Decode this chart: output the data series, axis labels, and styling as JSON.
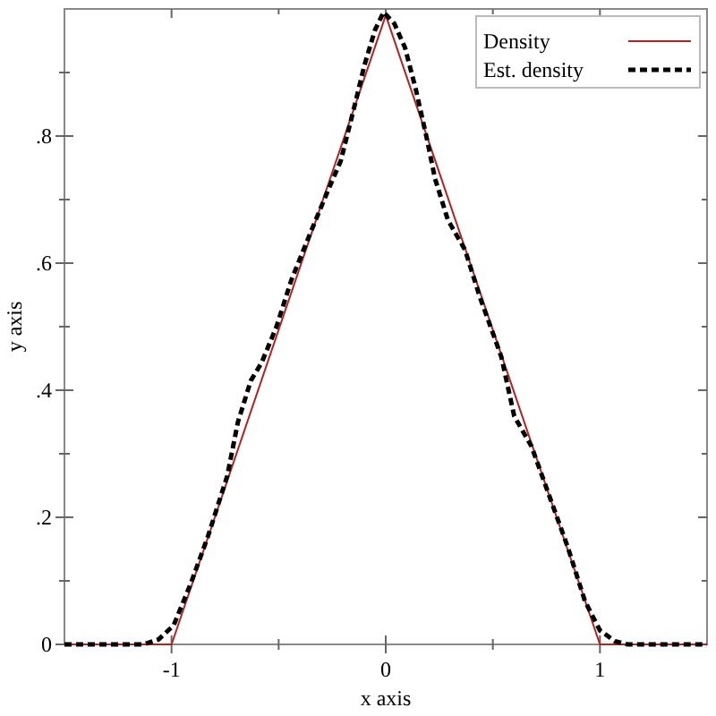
{
  "chart_data": {
    "type": "line",
    "xlabel": "x axis",
    "ylabel": "y axis",
    "legend": "top right",
    "xlim": [
      -1.5,
      1.5
    ],
    "ylim": [
      0,
      1
    ],
    "xticks": [
      -1,
      {
        "value": -0.5,
        "label": null
      },
      0,
      {
        "value": 0.5,
        "label": null
      },
      1
    ],
    "yticks": [
      0,
      {
        "value": 0.1,
        "label": null
      },
      {
        "value": 0.2,
        "label": ".2"
      },
      {
        "value": 0.3,
        "label": null
      },
      {
        "value": 0.4,
        "label": ".4"
      },
      {
        "value": 0.5,
        "label": null
      },
      {
        "value": 0.6,
        "label": ".6"
      },
      {
        "value": 0.7,
        "label": null
      },
      {
        "value": 0.8,
        "label": ".8"
      },
      {
        "value": 0.9,
        "label": null
      }
    ],
    "series": [
      {
        "name": "Density",
        "color": "#b22222",
        "line_style": "solid",
        "x": [
          -1.5,
          -1,
          0,
          1,
          1.5
        ],
        "values": [
          0,
          0,
          0.99,
          0,
          0
        ]
      },
      {
        "name": "Est. density",
        "color": "#000000",
        "line_style": "dashed",
        "x": [
          -1.5,
          -1.13,
          -1.06,
          -0.99,
          -0.91,
          -0.83,
          -0.74,
          -0.69,
          -0.63,
          -0.58,
          -0.51,
          -0.44,
          -0.35,
          -0.27,
          -0.21,
          -0.14,
          -0.1,
          -0.05,
          -0.01,
          0.04,
          0.09,
          0.14,
          0.19,
          0.23,
          0.29,
          0.37,
          0.44,
          0.5,
          0.54,
          0.6,
          0.68,
          0.76,
          0.85,
          0.93,
          1,
          1.07,
          1.13,
          1.5
        ],
        "values": [
          0,
          0,
          0.008,
          0.03,
          0.096,
          0.17,
          0.265,
          0.35,
          0.415,
          0.443,
          0.5,
          0.574,
          0.649,
          0.714,
          0.761,
          0.855,
          0.911,
          0.967,
          0.995,
          0.977,
          0.939,
          0.874,
          0.799,
          0.733,
          0.668,
          0.621,
          0.546,
          0.49,
          0.452,
          0.359,
          0.312,
          0.237,
          0.153,
          0.068,
          0.022,
          0.005,
          0,
          0
        ]
      }
    ]
  }
}
